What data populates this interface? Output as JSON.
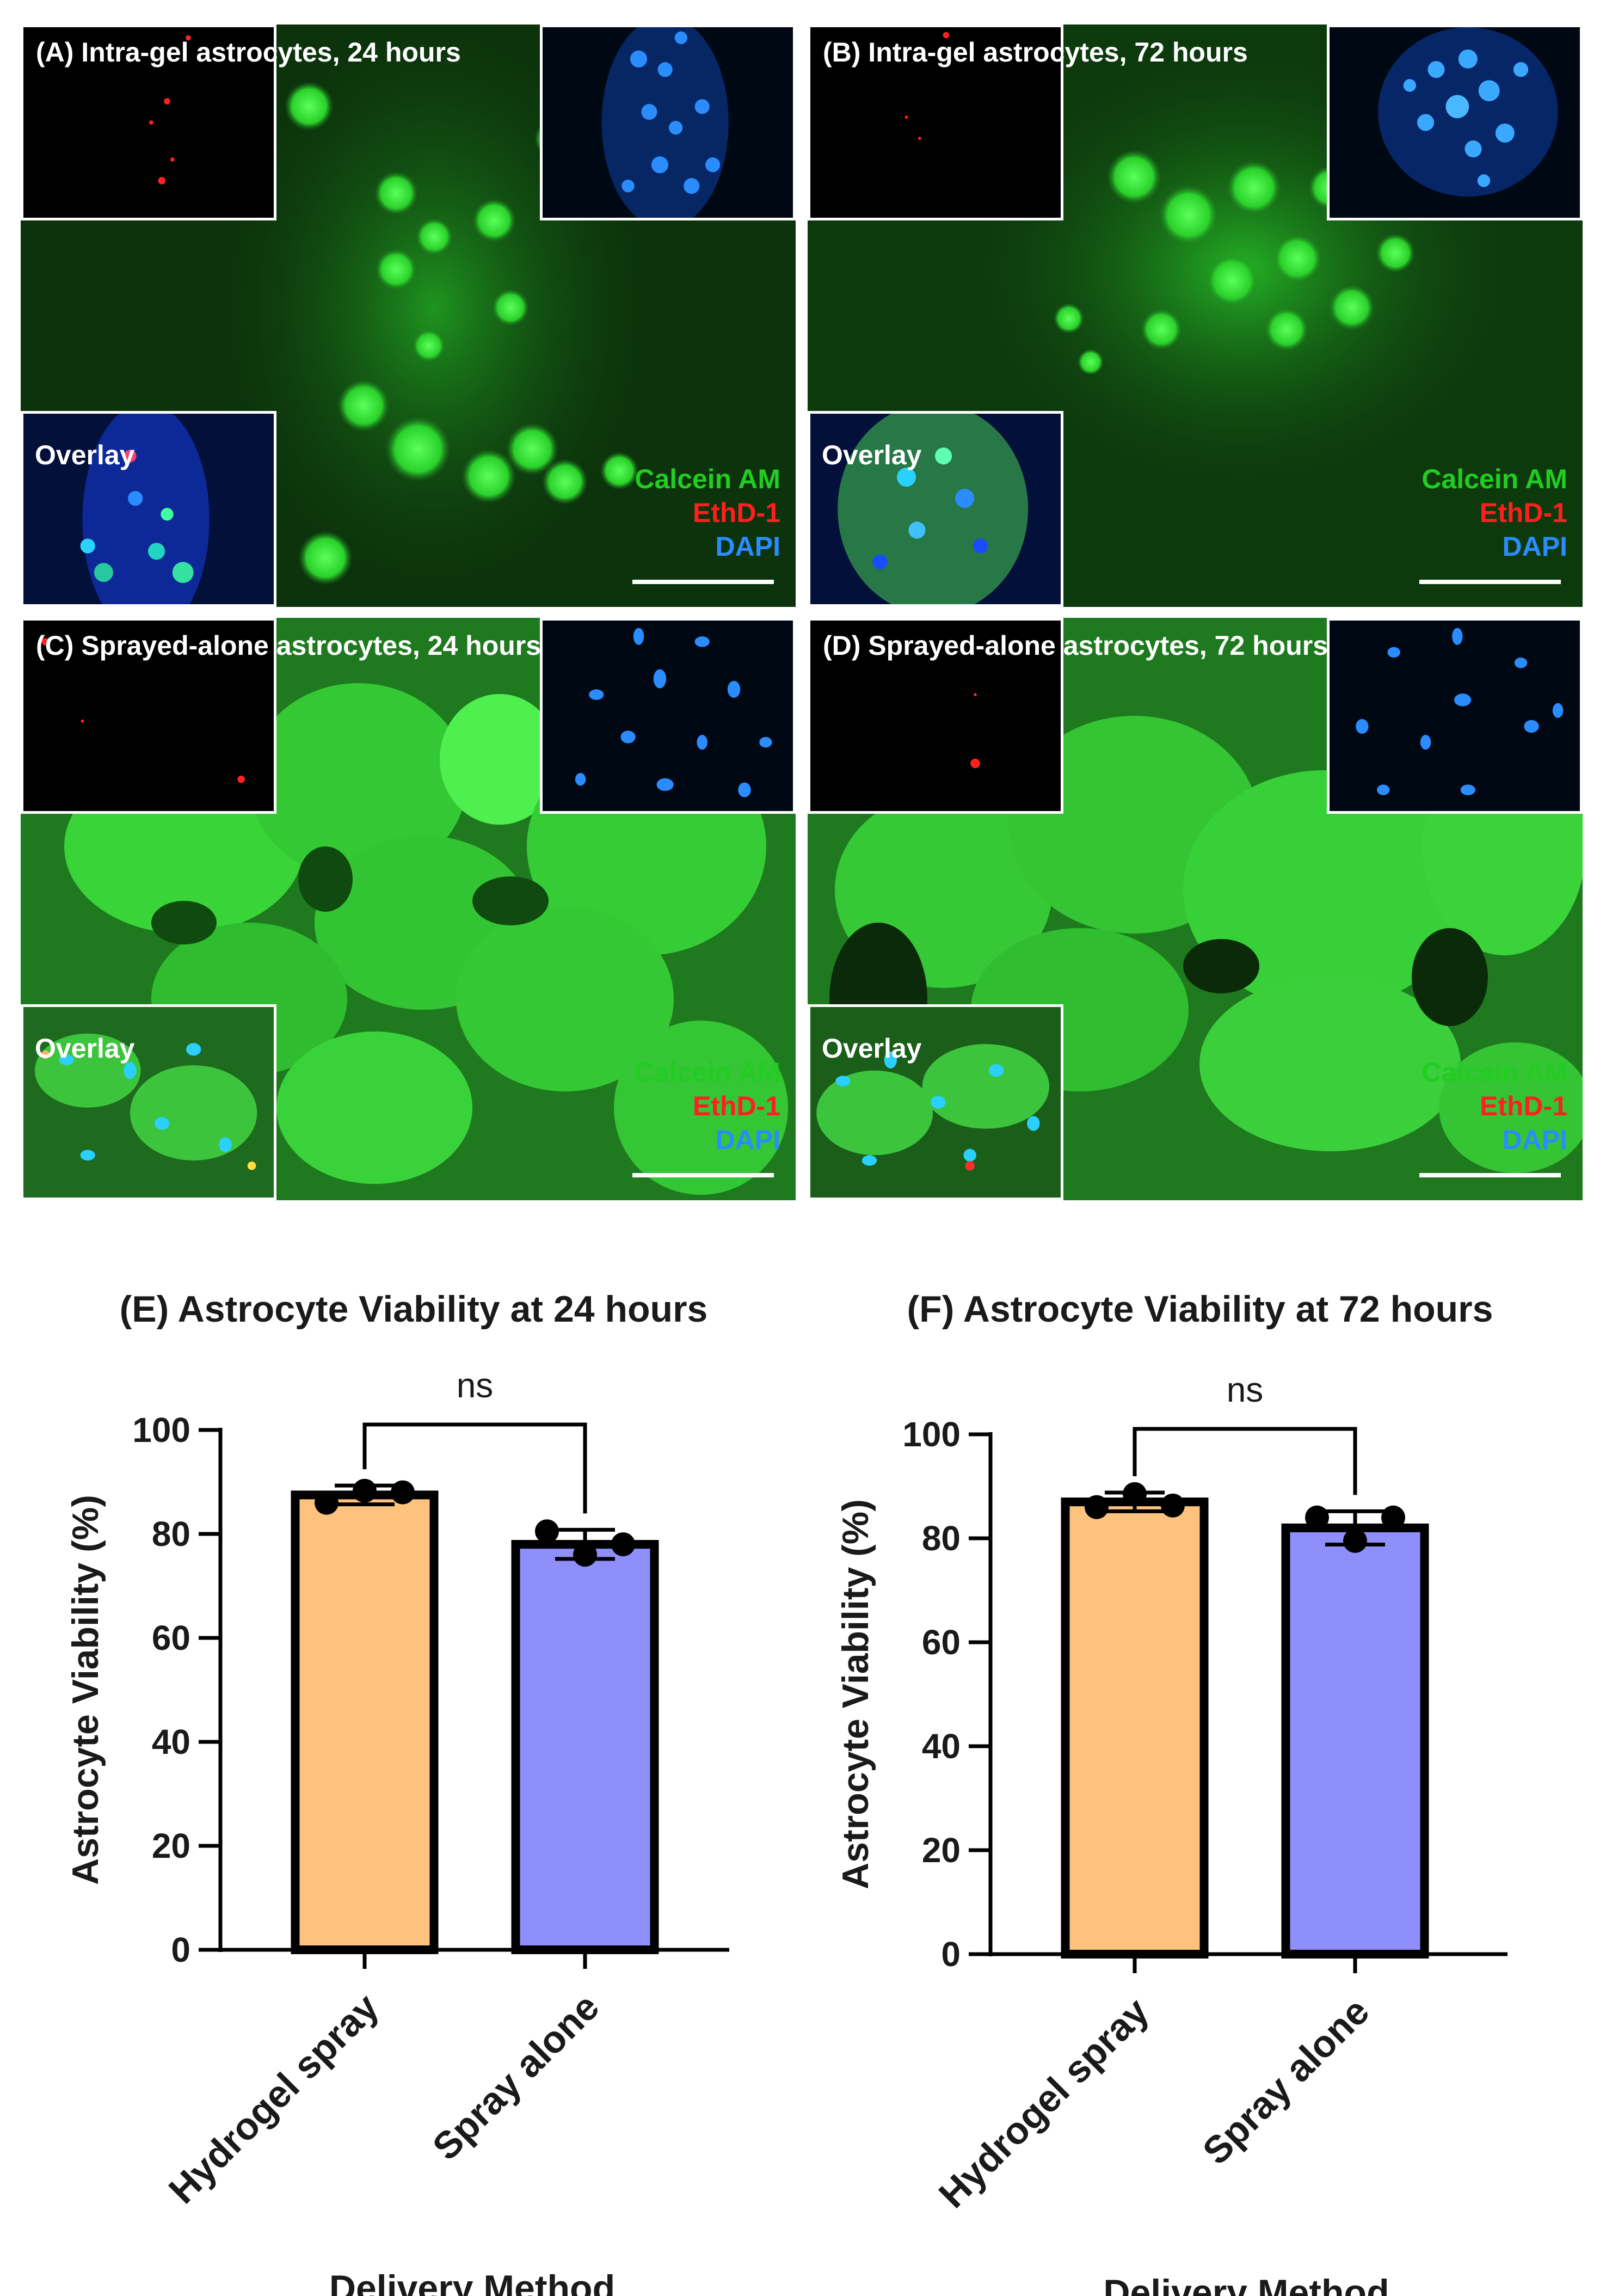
{
  "panels": {
    "a": {
      "title": "(A) Intra-gel astrocytes, 24 hours",
      "overlay": "Overlay"
    },
    "b": {
      "title": "(B) Intra-gel astrocytes, 72 hours",
      "overlay": "Overlay"
    },
    "c": {
      "title": "(C) Sprayed-alone astrocytes, 24 hours",
      "overlay": "Overlay"
    },
    "d": {
      "title": "(D) Sprayed-alone astrocytes, 72 hours",
      "overlay": "Overlay"
    }
  },
  "stain_legend": {
    "calcein": "Calcein AM",
    "ethd": "EthD-1",
    "dapi": "DAPI"
  },
  "colors": {
    "calcein": "#22cc22",
    "ethd": "#ff1f1f",
    "dapi": "#2a8cff",
    "hydrogel_bar": "#fcc27e",
    "spray_bar": "#8f8ffb"
  },
  "chart_data": [
    {
      "type": "bar",
      "title": "(E) Astrocyte Viability at 24 hours",
      "xlabel": "Delivery Method",
      "ylabel": "Astrocyte Viability (%)",
      "ylim": [
        0,
        100
      ],
      "yticks": [
        0,
        20,
        40,
        60,
        80,
        100
      ],
      "categories": [
        "Hydrogel spray",
        "Spray alone"
      ],
      "values": [
        87.5,
        78
      ],
      "error": [
        1.8,
        2.8
      ],
      "points": [
        [
          86,
          88.3,
          88
        ],
        [
          80.5,
          76,
          78
        ]
      ],
      "significance": "ns"
    },
    {
      "type": "bar",
      "title": "(F) Astrocyte Viability at 72 hours",
      "xlabel": "Delivery Method",
      "ylabel": "Astrocyte Viability (%)",
      "ylim": [
        0,
        100
      ],
      "yticks": [
        0,
        20,
        40,
        60,
        80,
        100
      ],
      "categories": [
        "Hydrogel spray",
        "Spray alone"
      ],
      "values": [
        87,
        82
      ],
      "error": [
        1.8,
        3.2
      ],
      "points": [
        [
          86,
          88.5,
          86.3
        ],
        [
          84,
          79.5,
          84
        ]
      ],
      "significance": "ns"
    }
  ]
}
